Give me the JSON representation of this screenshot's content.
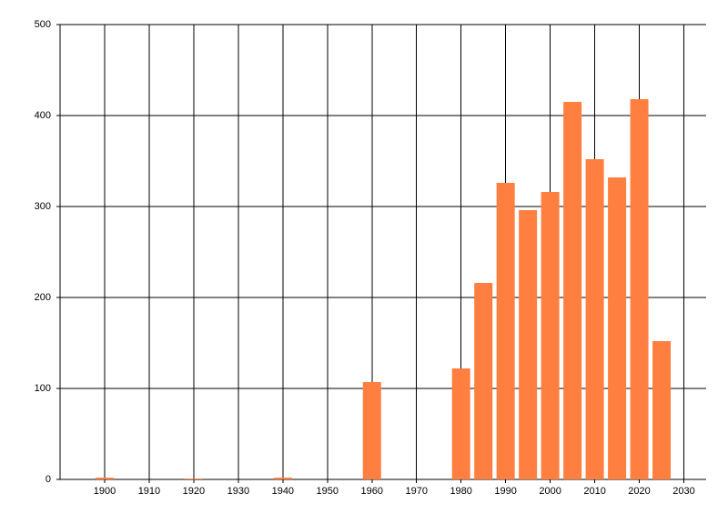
{
  "chart_data": {
    "type": "bar",
    "color": "#ff7f40",
    "x": [
      1900,
      1920,
      1940,
      1960,
      1980,
      1985,
      1990,
      1995,
      2000,
      2005,
      2010,
      2015,
      2020,
      2025
    ],
    "values": [
      2,
      1,
      2,
      107,
      122,
      216,
      326,
      296,
      316,
      415,
      352,
      332,
      418,
      152
    ],
    "xlim": [
      1890,
      2035
    ],
    "xticks": [
      1900,
      1910,
      1920,
      1930,
      1940,
      1950,
      1960,
      1970,
      1980,
      1990,
      2000,
      2010,
      2020,
      2030
    ],
    "ylim": [
      0,
      500
    ],
    "yticks": [
      0,
      100,
      200,
      300,
      400,
      500
    ],
    "grid": true
  }
}
